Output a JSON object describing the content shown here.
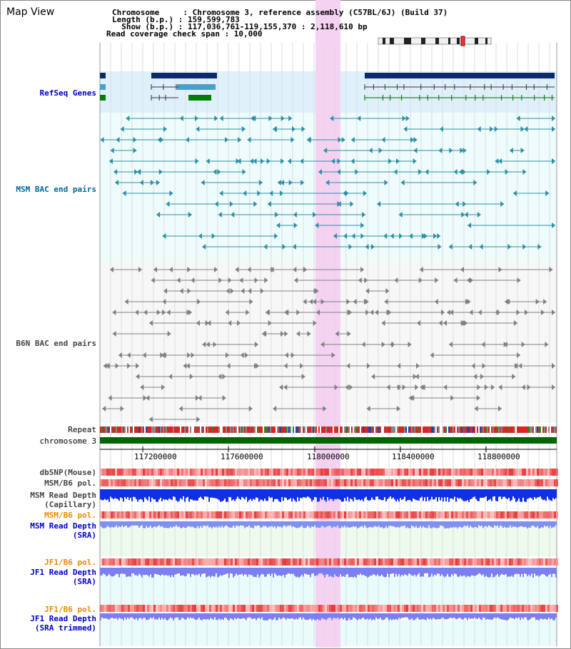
{
  "header": {
    "title": "Map View",
    "lines": [
      "Chromosome     : Chromosome 3, reference assembly (C57BL/6J) (Build 37)",
      "Length (b.p.) : 159,599,783",
      "  Show (b.p.) : 117,036,761-119,155,370 : 2,118,610 bp",
      "Read coverage check span : 10,000"
    ]
  },
  "tracks": {
    "refseq": "RefSeq Genes",
    "msm_bac": "MSM BAC end pairs",
    "b6n_bac": "B6N BAC end pairs",
    "repeat": "Repeat",
    "chromosome": "chromosome 3",
    "dbsnp": "dbSNP(Mouse)",
    "msm_b6_pol": "MSM/B6 pol.",
    "msm_depth_cap_1": "MSM Read Depth",
    "msm_depth_cap_2": "(Capillary)",
    "msm_b6_pol_2": "MSM/B6 pol.",
    "msm_depth_sra_1": "MSM Read Depth",
    "msm_depth_sra_2": "(SRA)",
    "jf1_pol_1": "JF1/B6 pol.",
    "jf1_depth_1": "JF1 Read Depth",
    "jf1_depth_1b": "(SRA)",
    "jf1_pol_2": "JF1/B6 pol.",
    "jf1_depth_2": "JF1 Read Depth",
    "jf1_depth_2b": "(SRA trimmed)"
  },
  "axis": {
    "ticks": [
      "117200000",
      "117600000",
      "118000000",
      "118400000",
      "118800000"
    ]
  },
  "colors": {
    "blue_label": "#0000cc",
    "teal_label": "#006699",
    "gray_label": "#444444",
    "orange_label": "#e68a00",
    "highlight": "#f6d2f2"
  }
}
